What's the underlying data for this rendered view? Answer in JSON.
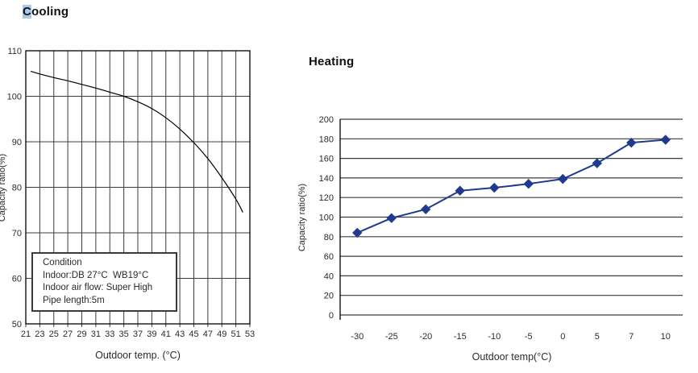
{
  "page": {
    "cooling_title": "Cooling",
    "heating_title": "Heating"
  },
  "colors": {
    "heating_line": "#1F3A8F",
    "grid_line": "#3c3c3c",
    "axis_line": "#000000",
    "selection_highlight": "#A9C9E9"
  },
  "chart_data": [
    {
      "id": "cooling",
      "type": "line",
      "title": "Cooling",
      "xlabel": "Outdoor temp. (°C)",
      "ylabel": "Capacity ratio(%)",
      "xlim": [
        21,
        53
      ],
      "ylim": [
        50,
        110
      ],
      "x_ticks": [
        21,
        23,
        25,
        27,
        29,
        31,
        33,
        35,
        37,
        39,
        41,
        43,
        45,
        47,
        49,
        51,
        53
      ],
      "y_ticks": [
        50,
        60,
        70,
        80,
        90,
        100,
        110
      ],
      "grid": "full",
      "legend": "none",
      "line_color": "#000000",
      "points": [
        [
          21.7,
          105.5
        ],
        [
          23,
          104.9
        ],
        [
          25,
          104.1
        ],
        [
          27,
          103.4
        ],
        [
          29,
          102.6
        ],
        [
          31,
          101.8
        ],
        [
          33,
          100.9
        ],
        [
          35,
          100.0
        ],
        [
          37,
          98.8
        ],
        [
          39,
          97.3
        ],
        [
          41,
          95.3
        ],
        [
          43,
          92.8
        ],
        [
          45,
          89.8
        ],
        [
          47,
          86.3
        ],
        [
          49,
          82.1
        ],
        [
          51,
          77.4
        ],
        [
          52,
          74.5
        ]
      ],
      "condition": [
        "Condition",
        "Indoor:DB 27°C  WB19°C",
        "Indoor air flow: Super High",
        "Pipe length:5m"
      ]
    },
    {
      "id": "heating",
      "type": "line",
      "title": "Heating",
      "xlabel": "Outdoor temp(°C)",
      "ylabel": "Capacity ratio(%)",
      "categories": [
        "-30",
        "-25",
        "-20",
        "-15",
        "-10",
        "-5",
        "0",
        "5",
        "7",
        "10"
      ],
      "values": [
        84,
        99,
        108,
        127,
        130,
        134,
        139,
        155,
        176,
        179
      ],
      "ylim": [
        0,
        200
      ],
      "y_ticks": [
        0,
        20,
        40,
        60,
        80,
        100,
        120,
        140,
        160,
        180,
        200
      ],
      "grid": "horizontal",
      "legend": "none",
      "marker": "diamond",
      "line_color": "#1F3A8F"
    }
  ]
}
